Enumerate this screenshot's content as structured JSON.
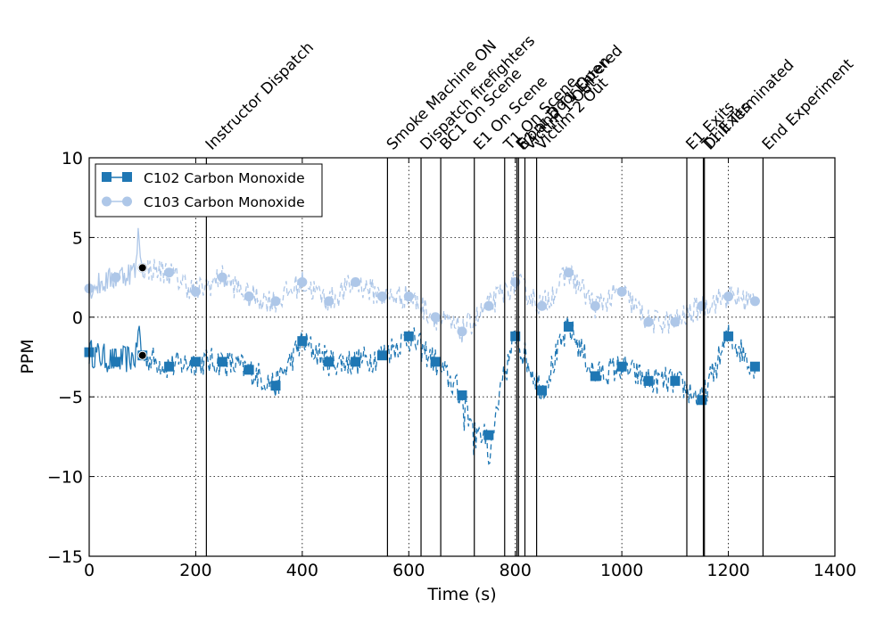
{
  "chart_data": {
    "type": "line",
    "title": "",
    "xlabel": "Time (s)",
    "ylabel": "PPM",
    "xlim": [
      0,
      1400
    ],
    "ylim": [
      -15,
      10
    ],
    "x_ticks": [
      0,
      200,
      400,
      600,
      800,
      1000,
      1200,
      1400
    ],
    "y_ticks": [
      -15,
      -10,
      -5,
      0,
      5,
      10
    ],
    "x_tick_labels": [
      "0",
      "200",
      "400",
      "600",
      "800",
      "1000",
      "1200",
      "1400"
    ],
    "y_tick_labels": [
      "−15",
      "−10",
      "−5",
      "0",
      "5",
      "10"
    ],
    "grid": true,
    "legend_position": "top-left",
    "series": [
      {
        "name": "C102 Carbon Monoxide",
        "color": "#1f77b4",
        "marker": "square",
        "marker_x": [
          0,
          50,
          100,
          150,
          200,
          250,
          300,
          350,
          400,
          450,
          500,
          550,
          600,
          650,
          700,
          750,
          800,
          850,
          900,
          950,
          1000,
          1050,
          1100,
          1150,
          1200,
          1250
        ],
        "marker_y": [
          -2.2,
          -2.8,
          -2.4,
          -3.1,
          -2.8,
          -2.8,
          -3.3,
          -4.3,
          -1.5,
          -2.8,
          -2.8,
          -2.4,
          -1.2,
          -2.8,
          -4.9,
          -7.4,
          -1.2,
          -4.6,
          -0.6,
          -3.7,
          -3.1,
          -4.0,
          -4.0,
          -5.2,
          -1.2,
          -3.1
        ],
        "solid_until": 100,
        "noise_amplitude": 0.9
      },
      {
        "name": "C103 Carbon Monoxide",
        "color": "#aec7e8",
        "marker": "circle",
        "marker_x": [
          0,
          50,
          100,
          150,
          200,
          250,
          300,
          350,
          400,
          450,
          500,
          550,
          600,
          650,
          700,
          750,
          800,
          850,
          900,
          950,
          1000,
          1050,
          1100,
          1150,
          1200,
          1250
        ],
        "marker_y": [
          1.8,
          2.5,
          3.1,
          2.8,
          1.6,
          2.5,
          1.3,
          1.0,
          2.2,
          1.0,
          2.2,
          1.3,
          1.3,
          0.0,
          -0.9,
          0.7,
          2.2,
          0.7,
          2.8,
          0.7,
          1.6,
          -0.3,
          -0.3,
          0.7,
          1.3,
          1.0
        ],
        "solid_until": 100,
        "noise_amplitude": 0.8
      }
    ],
    "highlight_points": [
      {
        "series": "C102 Carbon Monoxide",
        "x": 100,
        "y": -2.4
      },
      {
        "series": "C103 Carbon Monoxide",
        "x": 100,
        "y": 3.1
      }
    ],
    "events": [
      {
        "label": "Instructor Dispatch",
        "x": 220
      },
      {
        "label": "Smoke Machine ON",
        "x": 560
      },
      {
        "label": "Dispatch firefighters",
        "x": 623
      },
      {
        "label": "BC1 On Scene",
        "x": 660
      },
      {
        "label": "E1 On Scene",
        "x": 723
      },
      {
        "label": "T1 On Scene",
        "x": 780
      },
      {
        "label": "Front Door Open",
        "x": 803
      },
      {
        "label": "E1 and T1 Entered",
        "x": 806
      },
      {
        "label": "Victim 1 Out",
        "x": 818
      },
      {
        "label": "Victim 2 Out",
        "x": 840
      },
      {
        "label": "E1 Exits",
        "x": 1122
      },
      {
        "label": "T1 Exits",
        "x": 1153
      },
      {
        "label": "Drill Terminated",
        "x": 1155
      },
      {
        "label": "End Experiment",
        "x": 1265
      }
    ]
  }
}
